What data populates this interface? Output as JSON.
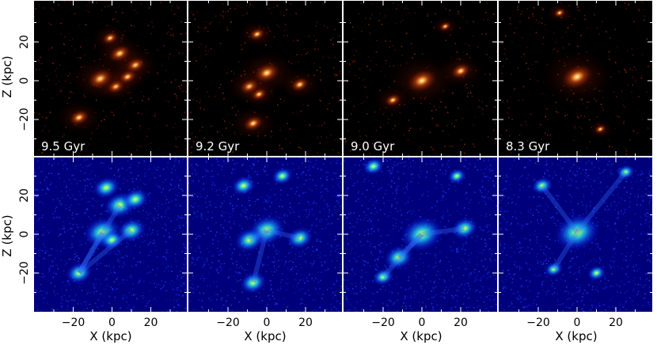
{
  "figure": {
    "y_axis_label": "Z (kpc)",
    "x_axis_label": "X (kpc)",
    "y_ticks": [
      "20",
      "0",
      "−20"
    ],
    "x_ticks": [
      "−20",
      "0",
      "20"
    ],
    "panels": [
      {
        "label": "9.5 Gyr",
        "stars": [
          {
            "x": -17,
            "z": -19,
            "s": 1.0
          },
          {
            "x": -6,
            "z": 1,
            "s": 1.3
          },
          {
            "x": 4,
            "z": 14,
            "s": 1.1
          },
          {
            "x": 12,
            "z": 8,
            "s": 1.0
          },
          {
            "x": -1,
            "z": 22,
            "s": 0.8
          },
          {
            "x": 2,
            "z": -3,
            "s": 0.9
          },
          {
            "x": 8,
            "z": 2,
            "s": 0.9
          }
        ]
      },
      {
        "label": "9.2 Gyr",
        "stars": [
          {
            "x": 0,
            "z": 4,
            "s": 1.3
          },
          {
            "x": -9,
            "z": -3,
            "s": 1.0
          },
          {
            "x": 17,
            "z": -2,
            "s": 0.9
          },
          {
            "x": -7,
            "z": -22,
            "s": 1.0
          },
          {
            "x": -5,
            "z": 24,
            "s": 0.8
          },
          {
            "x": -4,
            "z": -7,
            "s": 0.8
          }
        ]
      },
      {
        "label": "9.0 Gyr",
        "stars": [
          {
            "x": 0,
            "z": 0,
            "s": 1.5
          },
          {
            "x": 20,
            "z": 5,
            "s": 1.0
          },
          {
            "x": -15,
            "z": -10,
            "s": 0.8
          },
          {
            "x": 12,
            "z": 28,
            "s": 0.6
          }
        ]
      },
      {
        "label": "8.3 Gyr",
        "stars": [
          {
            "x": 0,
            "z": 2,
            "s": 1.6
          },
          {
            "x": 12,
            "z": -25,
            "s": 0.6
          },
          {
            "x": -9,
            "z": 35,
            "s": 0.6
          }
        ]
      }
    ],
    "gas": [
      [
        {
          "x": -17,
          "z": -20,
          "s": 1.0
        },
        {
          "x": -5,
          "z": 1,
          "s": 1.4
        },
        {
          "x": 4,
          "z": 15,
          "s": 1.2
        },
        {
          "x": 10,
          "z": 2,
          "s": 1.1
        },
        {
          "x": -3,
          "z": 24,
          "s": 1.0
        },
        {
          "x": 12,
          "z": 18,
          "s": 1.0
        },
        {
          "x": 0,
          "z": -3,
          "s": 0.9
        }
      ],
      [
        {
          "x": 0,
          "z": 2,
          "s": 1.4
        },
        {
          "x": -9,
          "z": -3,
          "s": 1.1
        },
        {
          "x": 17,
          "z": -2,
          "s": 1.0
        },
        {
          "x": -7,
          "z": -25,
          "s": 1.0
        },
        {
          "x": -12,
          "z": 25,
          "s": 0.9
        },
        {
          "x": 8,
          "z": 30,
          "s": 0.8
        }
      ],
      [
        {
          "x": 0,
          "z": 0,
          "s": 1.6
        },
        {
          "x": 22,
          "z": 3,
          "s": 1.0
        },
        {
          "x": -12,
          "z": -12,
          "s": 1.1
        },
        {
          "x": -20,
          "z": -22,
          "s": 0.8
        },
        {
          "x": -25,
          "z": 35,
          "s": 0.8
        },
        {
          "x": 18,
          "z": 30,
          "s": 0.7
        }
      ],
      [
        {
          "x": 0,
          "z": 1,
          "s": 1.7
        },
        {
          "x": -18,
          "z": 25,
          "s": 0.8
        },
        {
          "x": 25,
          "z": 32,
          "s": 0.7
        },
        {
          "x": -12,
          "z": -18,
          "s": 0.7
        },
        {
          "x": 10,
          "z": -20,
          "s": 0.7
        }
      ]
    ]
  }
}
